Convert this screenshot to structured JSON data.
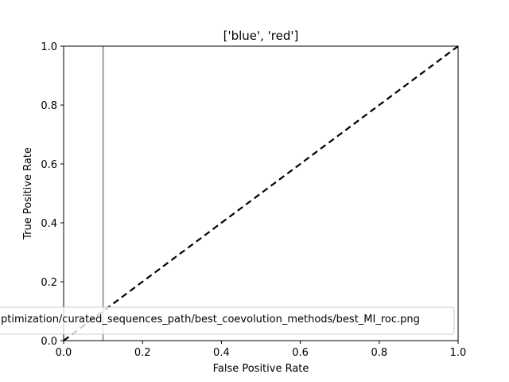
{
  "chart_data": {
    "type": "line",
    "title": "['blue', 'red']",
    "xlabel": "False Positive Rate",
    "ylabel": "True Positive Rate",
    "xlim": [
      0.0,
      1.0
    ],
    "ylim": [
      0.0,
      1.0
    ],
    "xticks": [
      "0.0",
      "0.2",
      "0.4",
      "0.6",
      "0.8",
      "1.0"
    ],
    "yticks": [
      "0.0",
      "0.2",
      "0.4",
      "0.6",
      "0.8",
      "1.0"
    ],
    "grid": false,
    "legend_position": "lower-left",
    "series": [
      {
        "name": "ptimization/curated_sequences_path/best_coevolution_methods/best_MI_roc.png",
        "color": "#808080",
        "style": "solid",
        "x": [
          0.1,
          0.1
        ],
        "y": [
          0.0,
          1.0
        ]
      },
      {
        "color": "#000000",
        "style": "dashed",
        "x": [
          0.0,
          1.0
        ],
        "y": [
          0.0,
          1.0
        ]
      }
    ]
  }
}
